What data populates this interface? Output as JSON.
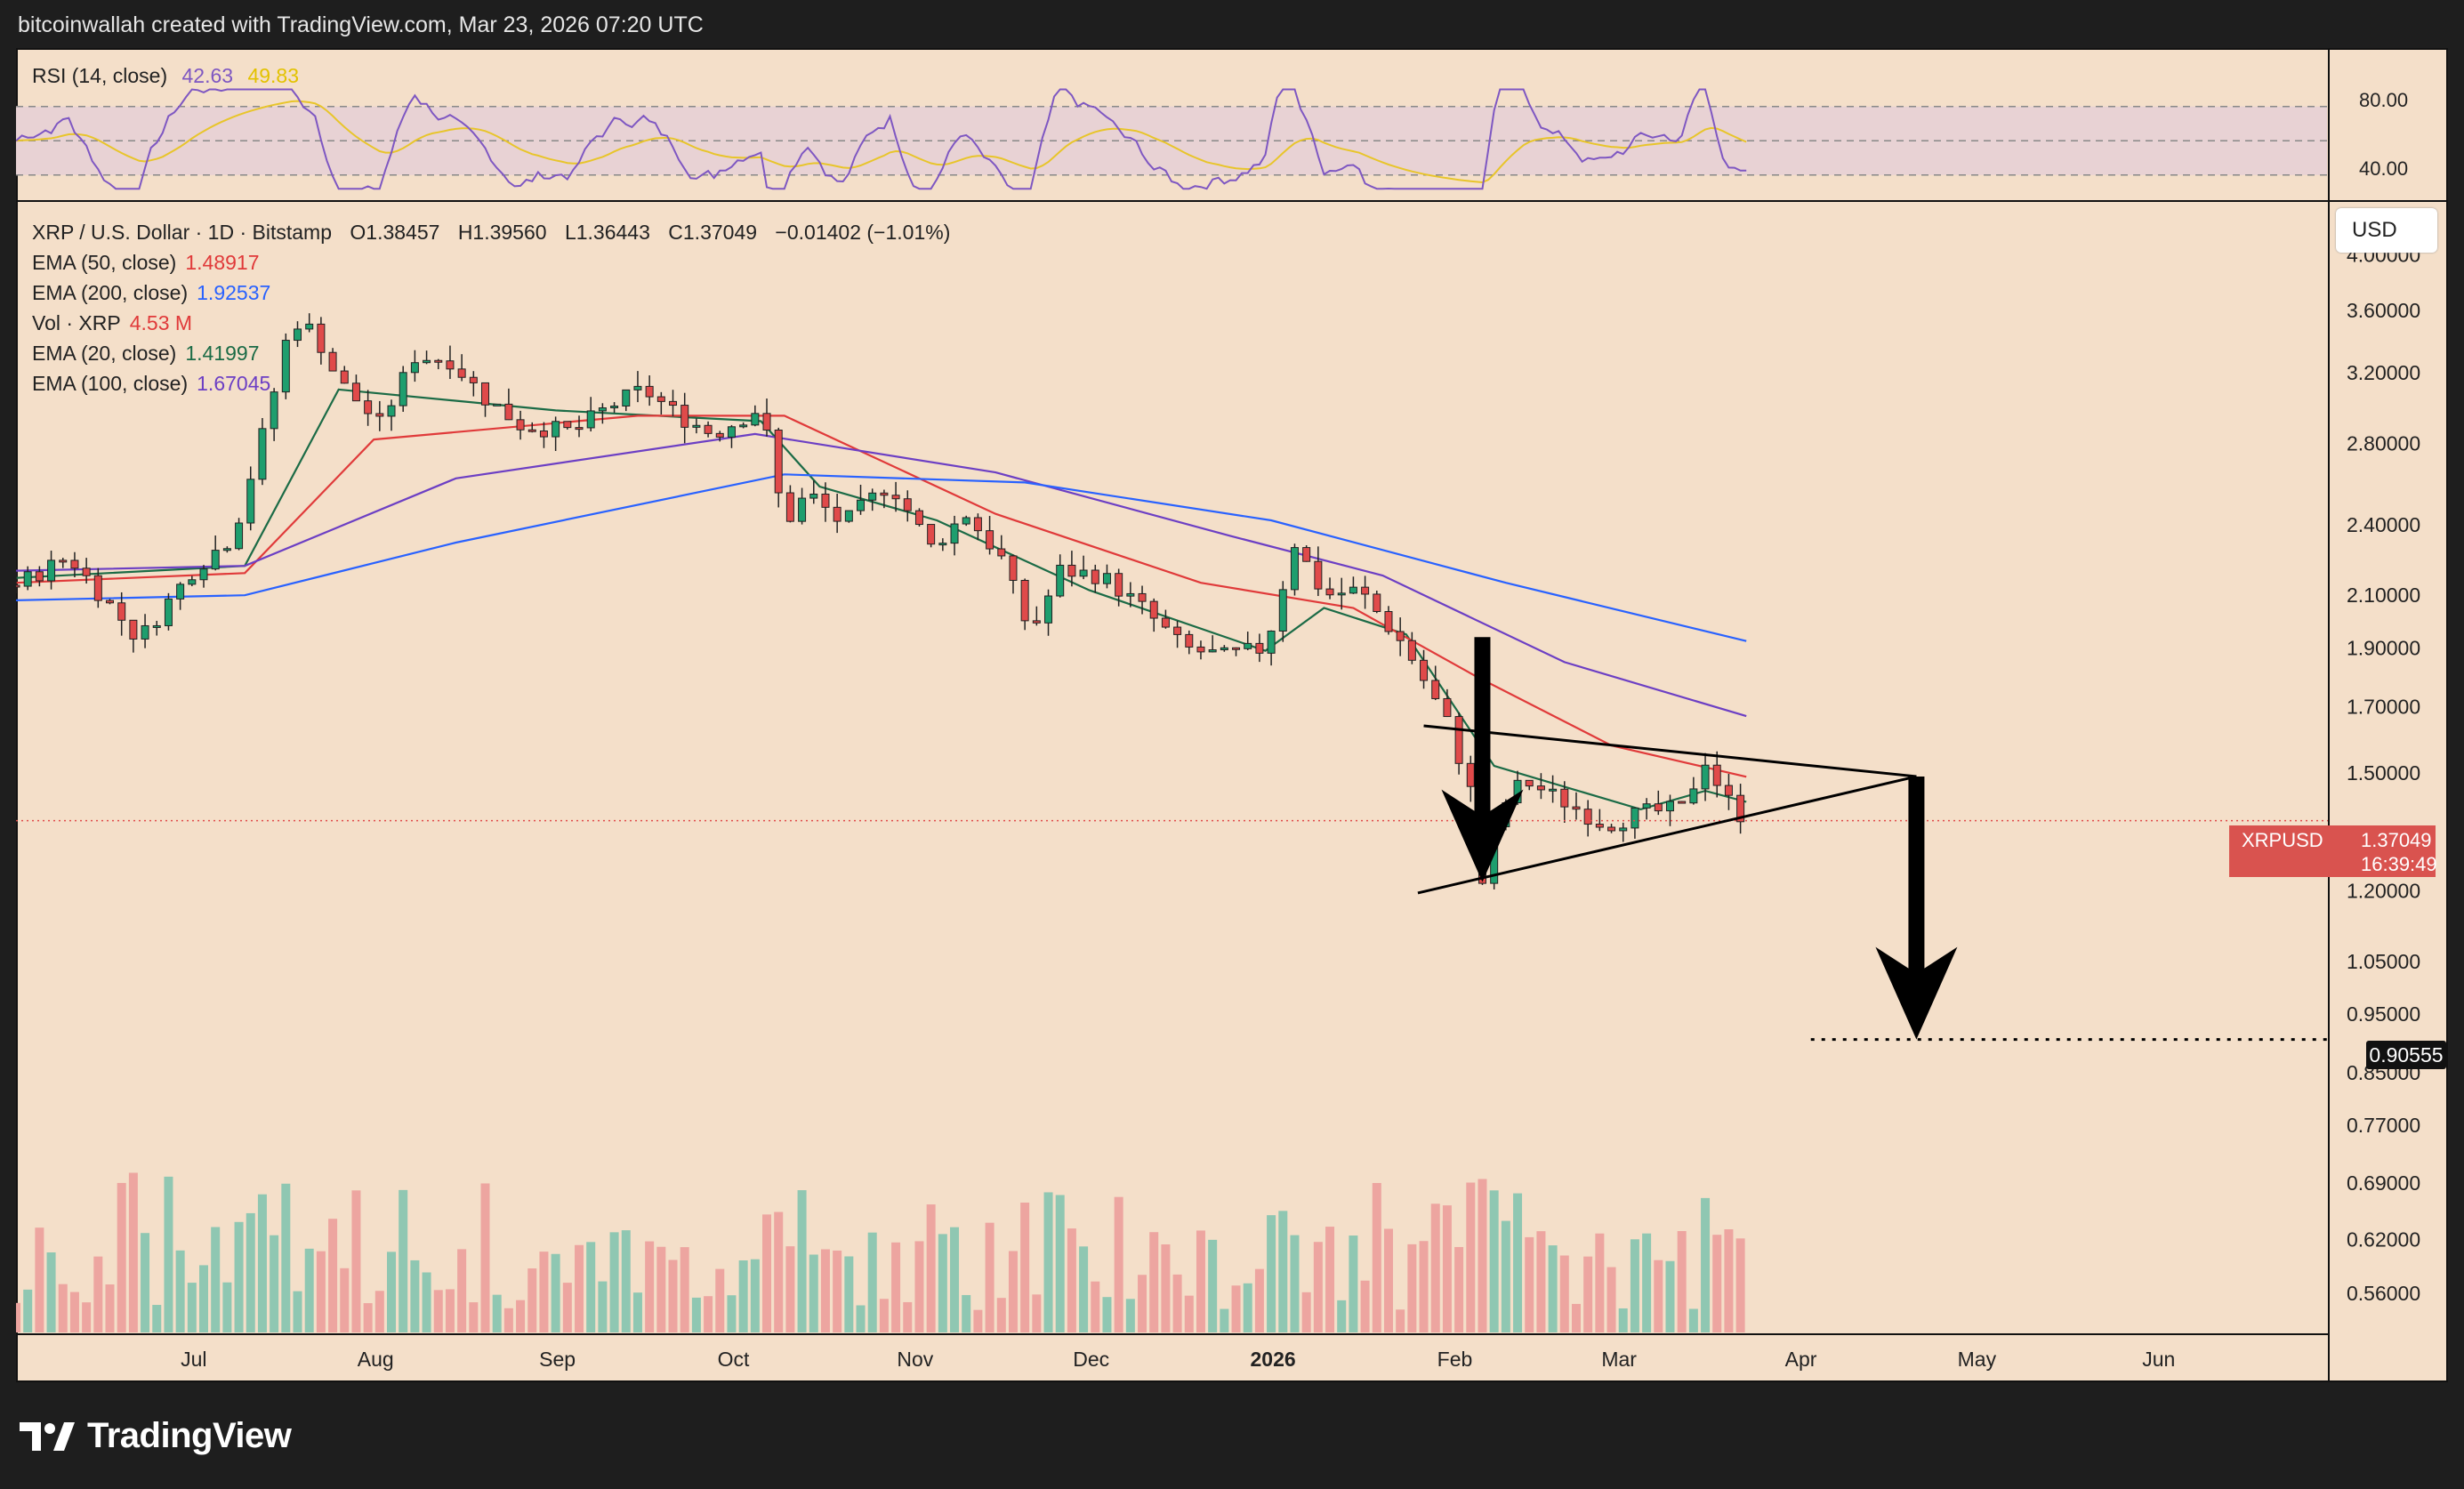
{
  "header": {
    "caption": "bitcoinwallah created with TradingView.com, Mar 23, 2026 07:20 UTC"
  },
  "footer": {
    "brand": "TradingView"
  },
  "rsi_panel": {
    "label": "RSI (14, close)",
    "value": "42.63",
    "ma_value": "49.83",
    "levels": [
      "80.00",
      "40.00"
    ]
  },
  "main_panel": {
    "symbol_line": "XRP / U.S. Dollar · 1D · Bitstamp",
    "ohlc": {
      "o": "O1.38457",
      "h": "H1.39560",
      "l": "L1.36443",
      "c": "C1.37049",
      "chg": "−0.01402 (−1.01%)"
    },
    "indicators": [
      {
        "label": "EMA (50, close)",
        "value": "1.48917",
        "color": "#e03a3a"
      },
      {
        "label": "EMA (200, close)",
        "value": "1.92537",
        "color": "#2962ff"
      },
      {
        "label": "Vol · XRP",
        "value": "4.53 M",
        "color": "#e03a3a"
      },
      {
        "label": "EMA (20, close)",
        "value": "1.41997",
        "color": "#1b6b46"
      },
      {
        "label": "EMA (100, close)",
        "value": "1.67045",
        "color": "#6c3fc4"
      }
    ],
    "currency_button": "USD",
    "last_price": {
      "symbol": "XRPUSD",
      "value": "1.37049",
      "countdown": "16:39:49"
    },
    "target_label": "0.90555"
  },
  "chart_data": {
    "type": "candlestick",
    "title": "XRP / U.S. Dollar · 1D · Bitstamp",
    "y_scale": "log",
    "ylim": [
      0.52,
      4.4
    ],
    "y_ticks": [
      "4.00000",
      "3.60000",
      "3.20000",
      "2.80000",
      "2.40000",
      "2.10000",
      "1.90000",
      "1.70000",
      "1.50000",
      "1.20000",
      "1.05000",
      "0.95000",
      "0.85000",
      "0.77000",
      "0.69000",
      "0.62000",
      "0.56000"
    ],
    "x_ticks": [
      "Jul",
      "Aug",
      "Sep",
      "Oct",
      "Nov",
      "Dec",
      "2026",
      "Feb",
      "Mar",
      "Apr",
      "May",
      "Jun"
    ],
    "x_range": [
      "2025-06-01",
      "2026-06-30"
    ],
    "last_close": 1.37049,
    "price_path": [
      [
        "2025-06-01",
        2.14
      ],
      [
        "2025-06-10",
        2.26
      ],
      [
        "2025-06-22",
        1.93
      ],
      [
        "2025-07-01",
        2.2
      ],
      [
        "2025-07-08",
        2.35
      ],
      [
        "2025-07-14",
        2.95
      ],
      [
        "2025-07-18",
        3.55
      ],
      [
        "2025-07-22",
        3.45
      ],
      [
        "2025-07-26",
        3.15
      ],
      [
        "2025-08-02",
        2.9
      ],
      [
        "2025-08-08",
        3.3
      ],
      [
        "2025-08-14",
        3.28
      ],
      [
        "2025-08-20",
        3.05
      ],
      [
        "2025-08-26",
        2.9
      ],
      [
        "2025-09-04",
        2.86
      ],
      [
        "2025-09-10",
        3.0
      ],
      [
        "2025-09-16",
        3.1
      ],
      [
        "2025-09-22",
        2.95
      ],
      [
        "2025-09-28",
        2.85
      ],
      [
        "2025-10-06",
        3.0
      ],
      [
        "2025-10-10",
        2.4
      ],
      [
        "2025-10-14",
        2.55
      ],
      [
        "2025-10-20",
        2.4
      ],
      [
        "2025-10-28",
        2.6
      ],
      [
        "2025-11-04",
        2.3
      ],
      [
        "2025-11-10",
        2.45
      ],
      [
        "2025-11-16",
        2.25
      ],
      [
        "2025-11-21",
        1.95
      ],
      [
        "2025-11-26",
        2.2
      ],
      [
        "2025-12-03",
        2.18
      ],
      [
        "2025-12-10",
        2.05
      ],
      [
        "2025-12-17",
        1.9
      ],
      [
        "2025-12-24",
        1.87
      ],
      [
        "2025-12-31",
        1.9
      ],
      [
        "2026-01-05",
        2.32
      ],
      [
        "2026-01-10",
        2.1
      ],
      [
        "2026-01-16",
        2.12
      ],
      [
        "2026-01-24",
        1.9
      ],
      [
        "2026-01-31",
        1.65
      ],
      [
        "2026-02-04",
        1.45
      ],
      [
        "2026-02-06",
        1.22
      ],
      [
        "2026-02-09",
        1.4
      ],
      [
        "2026-02-13",
        1.48
      ],
      [
        "2026-02-20",
        1.42
      ],
      [
        "2026-02-27",
        1.36
      ],
      [
        "2026-03-05",
        1.39
      ],
      [
        "2026-03-12",
        1.4
      ],
      [
        "2026-03-16",
        1.54
      ],
      [
        "2026-03-19",
        1.44
      ],
      [
        "2026-03-23",
        1.37049
      ]
    ],
    "series": [
      {
        "name": "EMA (20, close)",
        "path": [
          [
            "2025-06-01",
            2.17
          ],
          [
            "2025-07-10",
            2.22
          ],
          [
            "2025-07-26",
            3.1
          ],
          [
            "2025-09-01",
            2.98
          ],
          [
            "2025-10-06",
            2.92
          ],
          [
            "2025-10-16",
            2.58
          ],
          [
            "2025-11-05",
            2.42
          ],
          [
            "2025-12-01",
            2.12
          ],
          [
            "2025-12-31",
            1.89
          ],
          [
            "2026-01-10",
            2.05
          ],
          [
            "2026-01-24",
            1.95
          ],
          [
            "2026-02-08",
            1.52
          ],
          [
            "2026-03-05",
            1.4
          ],
          [
            "2026-03-16",
            1.45
          ],
          [
            "2026-03-23",
            1.41997
          ]
        ]
      },
      {
        "name": "EMA (50, close)",
        "path": [
          [
            "2025-06-01",
            2.15
          ],
          [
            "2025-07-10",
            2.19
          ],
          [
            "2025-08-01",
            2.82
          ],
          [
            "2025-09-15",
            2.95
          ],
          [
            "2025-10-10",
            2.95
          ],
          [
            "2025-11-15",
            2.45
          ],
          [
            "2025-12-20",
            2.15
          ],
          [
            "2026-01-15",
            2.05
          ],
          [
            "2026-02-05",
            1.8
          ],
          [
            "2026-02-28",
            1.58
          ],
          [
            "2026-03-23",
            1.48917
          ]
        ]
      },
      {
        "name": "EMA (100, close)",
        "path": [
          [
            "2025-06-01",
            2.2
          ],
          [
            "2025-07-10",
            2.22
          ],
          [
            "2025-08-15",
            2.62
          ],
          [
            "2025-10-05",
            2.85
          ],
          [
            "2025-11-15",
            2.65
          ],
          [
            "2025-12-25",
            2.35
          ],
          [
            "2026-01-20",
            2.18
          ],
          [
            "2026-02-20",
            1.85
          ],
          [
            "2026-03-23",
            1.67045
          ]
        ]
      },
      {
        "name": "EMA (200, close)",
        "path": [
          [
            "2025-06-01",
            2.08
          ],
          [
            "2025-07-10",
            2.1
          ],
          [
            "2025-08-15",
            2.32
          ],
          [
            "2025-10-10",
            2.64
          ],
          [
            "2025-11-20",
            2.6
          ],
          [
            "2026-01-01",
            2.42
          ],
          [
            "2026-02-10",
            2.15
          ],
          [
            "2026-03-23",
            1.92537
          ]
        ]
      }
    ],
    "volume_last": "4.53 M",
    "annotations": {
      "upper_trendline": [
        [
          "2026-01-27",
          1.64
        ],
        [
          "2026-04-21",
          1.49
        ]
      ],
      "lower_trendline": [
        [
          "2026-01-26",
          1.195
        ],
        [
          "2026-04-21",
          1.49
        ]
      ],
      "flagpole_arrow": [
        [
          "2026-02-06",
          1.94
        ],
        [
          "2026-02-06",
          1.22
        ]
      ],
      "breakdown_arrow": [
        [
          "2026-04-21",
          1.49
        ],
        [
          "2026-04-21",
          0.90555
        ]
      ],
      "target_line": {
        "from": "2026-04-03",
        "value": 0.90555
      }
    }
  }
}
